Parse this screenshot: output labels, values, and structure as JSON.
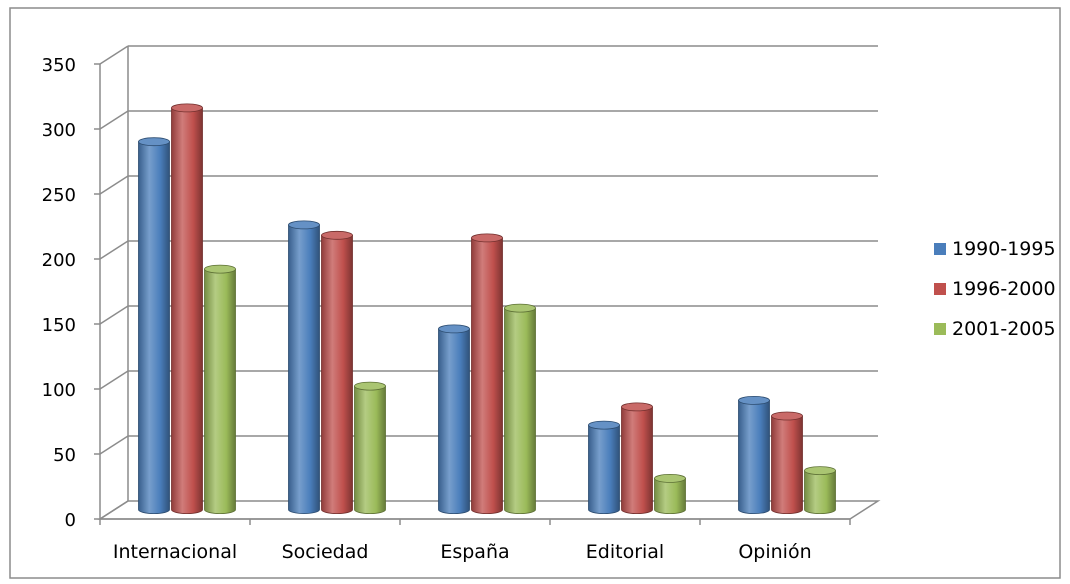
{
  "chart_data": {
    "type": "bar",
    "title": "",
    "xlabel": "",
    "ylabel": "",
    "ylim": [
      0,
      350
    ],
    "yticks": [
      0,
      50,
      100,
      150,
      200,
      250,
      300,
      350
    ],
    "categories": [
      "Internacional",
      "Sociedad",
      "España",
      "Editorial",
      "Opinión"
    ],
    "series": [
      {
        "name": "1990-1995",
        "color": "#4a7ebb",
        "values": [
          283,
          219,
          139,
          65,
          84
        ]
      },
      {
        "name": "1996-2000",
        "color": "#c0504d",
        "values": [
          309,
          211,
          209,
          79,
          72
        ]
      },
      {
        "name": "2001-2005",
        "color": "#9bbb59",
        "values": [
          185,
          95,
          155,
          24,
          30
        ]
      }
    ],
    "grid": true,
    "legend": "right",
    "style": "3d-cylinder"
  }
}
